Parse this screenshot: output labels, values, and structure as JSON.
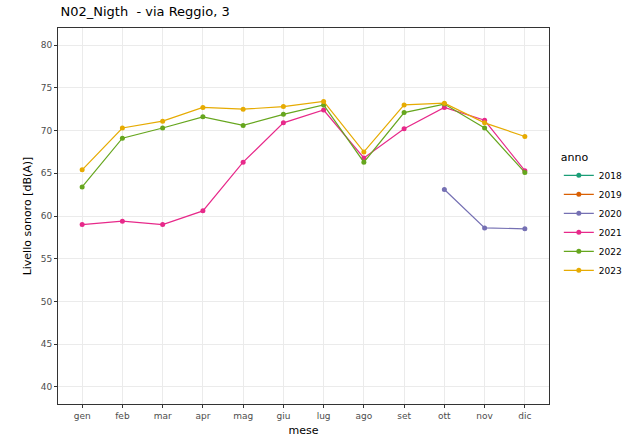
{
  "chart_data": {
    "type": "line",
    "title": "N02_Nigth  - via Reggio, 3",
    "x_label": "mese",
    "y_label": "Livello sonoro [dB(A)]",
    "legend_title": "anno",
    "categories": [
      "gen",
      "feb",
      "mar",
      "apr",
      "mag",
      "giu",
      "lug",
      "ago",
      "set",
      "ott",
      "nov",
      "dic"
    ],
    "series": [
      {
        "name": "2018",
        "color": "#1B9E77",
        "values": [
          null,
          null,
          null,
          null,
          null,
          null,
          null,
          null,
          null,
          null,
          null,
          null
        ]
      },
      {
        "name": "2019",
        "color": "#D95F02",
        "values": [
          null,
          null,
          null,
          null,
          null,
          null,
          null,
          null,
          null,
          null,
          null,
          null
        ]
      },
      {
        "name": "2020",
        "color": "#7570B3",
        "values": [
          null,
          null,
          null,
          null,
          null,
          null,
          null,
          null,
          null,
          63.1,
          58.6,
          58.5
        ]
      },
      {
        "name": "2021",
        "color": "#E7298A",
        "values": [
          59.0,
          59.4,
          59.0,
          60.6,
          66.3,
          70.9,
          72.4,
          66.8,
          70.2,
          72.7,
          71.2,
          65.3
        ]
      },
      {
        "name": "2022",
        "color": "#66A61E",
        "values": [
          63.4,
          69.1,
          70.3,
          71.6,
          70.6,
          71.9,
          73.0,
          66.3,
          72.1,
          73.1,
          70.3,
          65.1
        ]
      },
      {
        "name": "2023",
        "color": "#E6AB02",
        "values": [
          65.4,
          70.3,
          71.1,
          72.7,
          72.5,
          72.8,
          73.4,
          67.5,
          73.0,
          73.2,
          70.9,
          69.3
        ]
      }
    ],
    "ylim": [
      38,
      82
    ],
    "yticks": [
      40,
      45,
      50,
      55,
      60,
      65,
      70,
      75,
      80
    ],
    "grid": true,
    "legend": "right",
    "marker": "circle",
    "line_style": "solid"
  }
}
